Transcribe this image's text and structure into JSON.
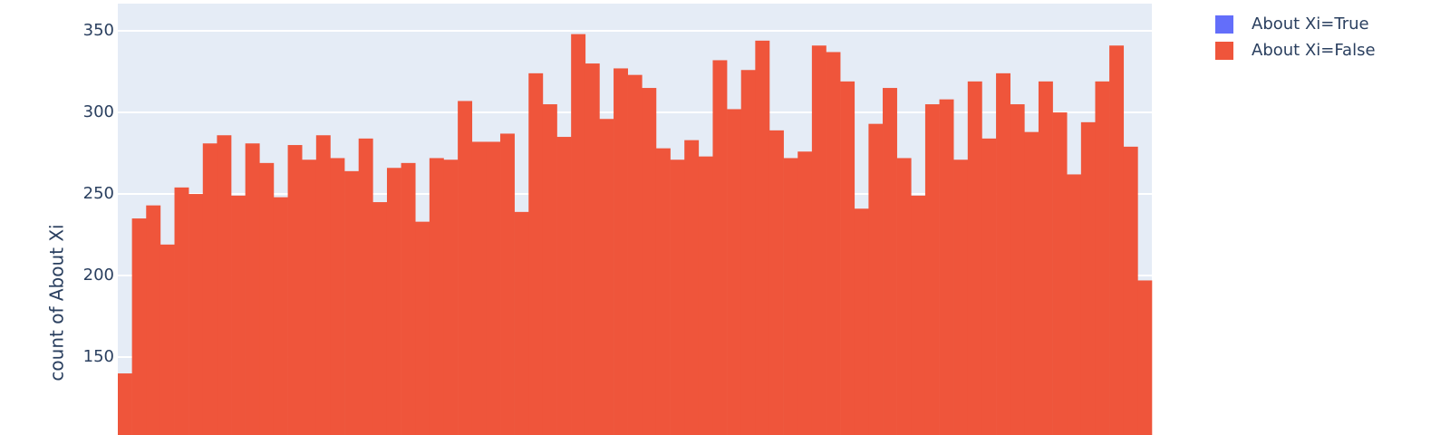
{
  "chart_data": {
    "type": "histogram",
    "y_label": "count of About Xi",
    "series": [
      {
        "name": "About Xi=True",
        "color": "#636efa"
      },
      {
        "name": "About Xi=False",
        "color": "#ef553b",
        "values": [
          140,
          235,
          243,
          219,
          254,
          250,
          281,
          286,
          249,
          281,
          269,
          248,
          280,
          271,
          286,
          272,
          264,
          284,
          245,
          266,
          269,
          233,
          272,
          271,
          307,
          282,
          282,
          287,
          239,
          324,
          305,
          285,
          348,
          330,
          296,
          327,
          323,
          315,
          278,
          271,
          283,
          273,
          332,
          302,
          326,
          344,
          289,
          272,
          276,
          341,
          337,
          319,
          241,
          293,
          315,
          272,
          249,
          305,
          308,
          271,
          319,
          284,
          324,
          305,
          288,
          319,
          300,
          262,
          294,
          319,
          341,
          279,
          197
        ]
      }
    ],
    "ylim": [
      107.8,
      366.7
    ],
    "yticks": [
      150,
      200,
      250,
      300,
      350
    ],
    "grid": true,
    "legend": "top-right-outside"
  }
}
